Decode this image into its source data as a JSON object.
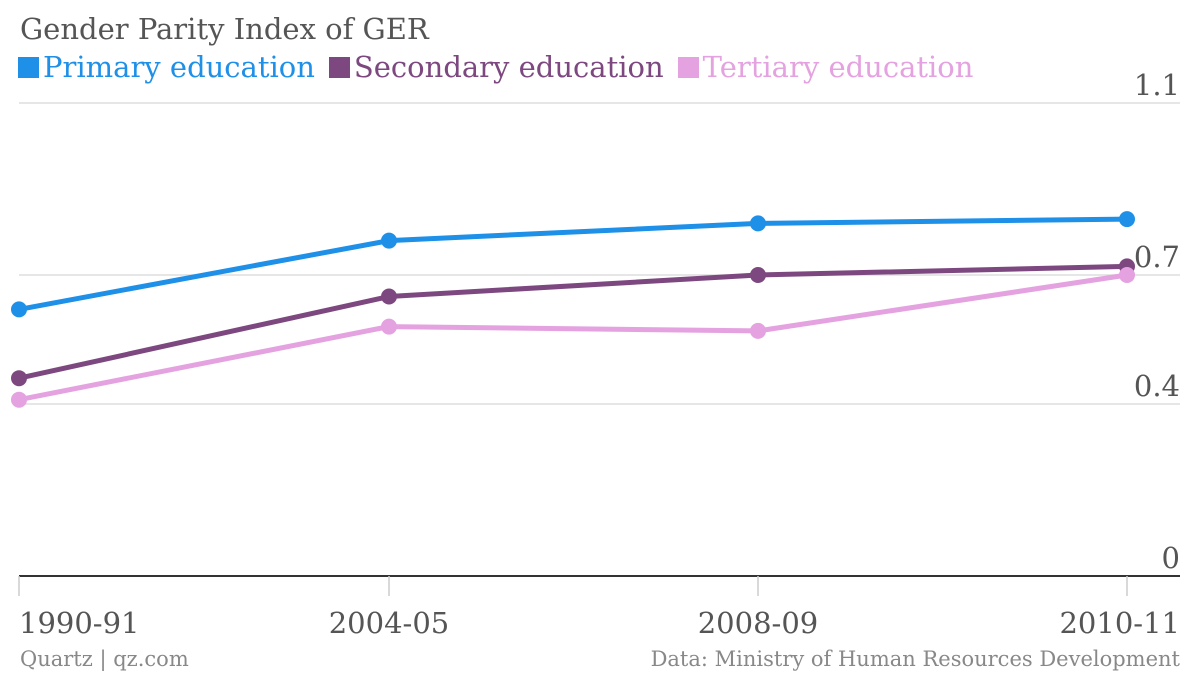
{
  "chart_data": {
    "type": "line",
    "title": "Gender Parity Index of GER",
    "categories": [
      "1990-91",
      "2004-05",
      "2008-09",
      "2010-11"
    ],
    "series": [
      {
        "name": "Primary education",
        "color": "#1e90e8",
        "values": [
          0.62,
          0.78,
          0.82,
          0.83
        ]
      },
      {
        "name": "Secondary education",
        "color": "#7d4880",
        "values": [
          0.46,
          0.65,
          0.7,
          0.72
        ]
      },
      {
        "name": "Tertiary education",
        "color": "#e4a2e0",
        "values": [
          0.41,
          0.58,
          0.57,
          0.7
        ]
      }
    ],
    "yticks": [
      "0",
      "0.4",
      "0.7",
      "1.1"
    ],
    "ylim": [
      0,
      1.1
    ],
    "grid": true,
    "legend_position": "top-left",
    "source_left": "Quartz | qz.com",
    "source_right": "Data: Ministry of Human Resources Development"
  }
}
